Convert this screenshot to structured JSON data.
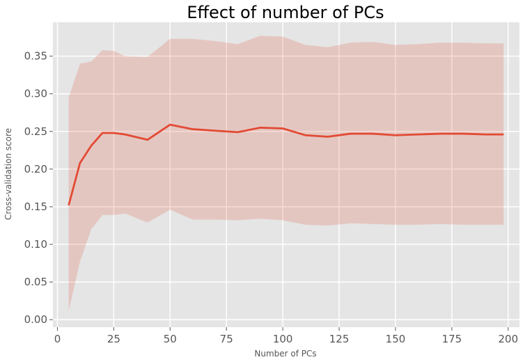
{
  "chart_data": {
    "type": "line",
    "title": "Effect of number of PCs",
    "xlabel": "Number of PCs",
    "ylabel": "Cross-validation score",
    "xlim": [
      -2,
      205
    ],
    "ylim": [
      -0.01,
      0.395
    ],
    "xticks": [
      0,
      25,
      50,
      75,
      100,
      125,
      150,
      175,
      200
    ],
    "yticks": [
      0.0,
      0.05,
      0.1,
      0.15,
      0.2,
      0.25,
      0.3,
      0.35
    ],
    "xtick_labels": [
      "0",
      "25",
      "50",
      "75",
      "100",
      "125",
      "150",
      "175",
      "200"
    ],
    "ytick_labels": [
      "0.00",
      "0.05",
      "0.10",
      "0.15",
      "0.20",
      "0.25",
      "0.30",
      "0.35"
    ],
    "grid": true,
    "series": [
      {
        "x": [
          5,
          10,
          15,
          20,
          25,
          30,
          40,
          50,
          60,
          70,
          80,
          90,
          100,
          110,
          120,
          130,
          140,
          150,
          160,
          170,
          180,
          190,
          198
        ],
        "mean": [
          0.152,
          0.208,
          0.231,
          0.248,
          0.248,
          0.246,
          0.239,
          0.259,
          0.253,
          0.251,
          0.249,
          0.255,
          0.254,
          0.245,
          0.243,
          0.247,
          0.247,
          0.245,
          0.246,
          0.247,
          0.247,
          0.246,
          0.246
        ],
        "lower": [
          0.012,
          0.077,
          0.12,
          0.139,
          0.139,
          0.141,
          0.129,
          0.146,
          0.133,
          0.133,
          0.132,
          0.134,
          0.132,
          0.126,
          0.125,
          0.128,
          0.127,
          0.126,
          0.126,
          0.127,
          0.126,
          0.126,
          0.126
        ],
        "upper": [
          0.295,
          0.34,
          0.343,
          0.358,
          0.357,
          0.35,
          0.349,
          0.373,
          0.373,
          0.37,
          0.366,
          0.377,
          0.376,
          0.365,
          0.362,
          0.368,
          0.369,
          0.365,
          0.366,
          0.368,
          0.368,
          0.367,
          0.367
        ]
      }
    ]
  },
  "colors": {
    "line": "#e24a33",
    "band": "#e24a33",
    "plot_bg": "#e5e5e5",
    "grid": "#ffffff"
  }
}
